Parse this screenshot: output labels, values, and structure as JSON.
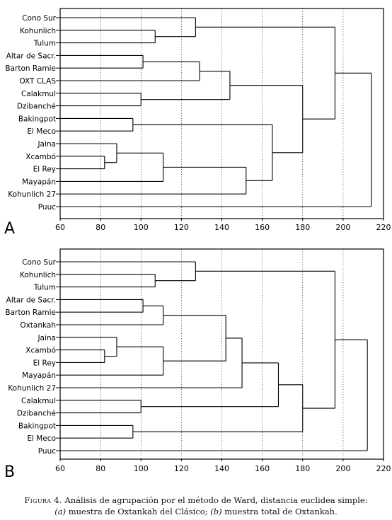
{
  "caption": {
    "figure_label": "Figura 4.",
    "line1_text": "Análisis de agrupación por el método de Ward, distancia euclidea simple:",
    "a_marker": "(a)",
    "a_text": "muestra de Oxtankah del Clásico;",
    "b_marker": "(b)",
    "b_text": "muestra total de Oxtankah."
  },
  "chart_data": [
    {
      "type": "dendrogram",
      "panel_label": "A",
      "method": "Ward",
      "xlim": [
        60,
        220
      ],
      "x_ticks": [
        60,
        80,
        100,
        120,
        140,
        160,
        180,
        200,
        220
      ],
      "grid": "vertical dotted",
      "leaves": [
        "Cono Sur",
        "Kohunlich",
        "Tulum",
        "Altar de Sacr.",
        "Barton Ramie",
        "OXT CLAS",
        "Calakmul",
        "Dzibanché",
        "Bakingpot",
        "El Meco",
        "Jaina",
        "Xcambó",
        "El Rey",
        "Mayapán",
        "Kohunlich 27",
        "Puuc"
      ],
      "merges": [
        {
          "a": "Kohunlich",
          "b": "Tulum",
          "height": 107
        },
        {
          "a": "Cono Sur",
          "b": 0,
          "height": 127
        },
        {
          "a": "Altar de Sacr.",
          "b": "Barton Ramie",
          "height": 101
        },
        {
          "a": 2,
          "b": "OXT CLAS",
          "height": 129
        },
        {
          "a": "Calakmul",
          "b": "Dzibanché",
          "height": 100
        },
        {
          "a": 3,
          "b": 4,
          "height": 144
        },
        {
          "a": "Bakingpot",
          "b": "El Meco",
          "height": 96
        },
        {
          "a": "Xcambó",
          "b": "El Rey",
          "height": 82
        },
        {
          "a": "Jaina",
          "b": 7,
          "height": 88
        },
        {
          "a": 8,
          "b": "Mayapán",
          "height": 111
        },
        {
          "a": 9,
          "b": "Kohunlich 27",
          "height": 152
        },
        {
          "a": 6,
          "b": 10,
          "height": 165
        },
        {
          "a": 5,
          "b": 11,
          "height": 180
        },
        {
          "a": 1,
          "b": 12,
          "height": 196
        },
        {
          "a": 13,
          "b": "Puuc",
          "height": 214
        }
      ]
    },
    {
      "type": "dendrogram",
      "panel_label": "B",
      "method": "Ward",
      "xlim": [
        60,
        220
      ],
      "x_ticks": [
        60,
        80,
        100,
        120,
        140,
        160,
        180,
        200,
        220
      ],
      "grid": "vertical dotted",
      "leaves": [
        "Cono Sur",
        "Kohunlich",
        "Tulum",
        "Altar de Sacr.",
        "Barton Ramie",
        "Oxtankah",
        "Jaina",
        "Xcambó",
        "El Rey",
        "Mayapán",
        "Kohunlich 27",
        "Calakmul",
        "Dzibanché",
        "Bakingpot",
        "El Meco",
        "Puuc"
      ],
      "merges": [
        {
          "a": "Kohunlich",
          "b": "Tulum",
          "height": 107
        },
        {
          "a": "Cono Sur",
          "b": 0,
          "height": 127
        },
        {
          "a": "Altar de Sacr.",
          "b": "Barton Ramie",
          "height": 101
        },
        {
          "a": 2,
          "b": "Oxtankah",
          "height": 111
        },
        {
          "a": "Xcambó",
          "b": "El Rey",
          "height": 82
        },
        {
          "a": "Jaina",
          "b": 4,
          "height": 88
        },
        {
          "a": 5,
          "b": "Mayapán",
          "height": 111
        },
        {
          "a": 3,
          "b": 6,
          "height": 142
        },
        {
          "a": 7,
          "b": "Kohunlich 27",
          "height": 150
        },
        {
          "a": "Calakmul",
          "b": "Dzibanché",
          "height": 100
        },
        {
          "a": 8,
          "b": 9,
          "height": 168
        },
        {
          "a": "Bakingpot",
          "b": "El Meco",
          "height": 96
        },
        {
          "a": 10,
          "b": 11,
          "height": 180
        },
        {
          "a": 1,
          "b": 12,
          "height": 196
        },
        {
          "a": 13,
          "b": "Puuc",
          "height": 212
        }
      ]
    }
  ]
}
